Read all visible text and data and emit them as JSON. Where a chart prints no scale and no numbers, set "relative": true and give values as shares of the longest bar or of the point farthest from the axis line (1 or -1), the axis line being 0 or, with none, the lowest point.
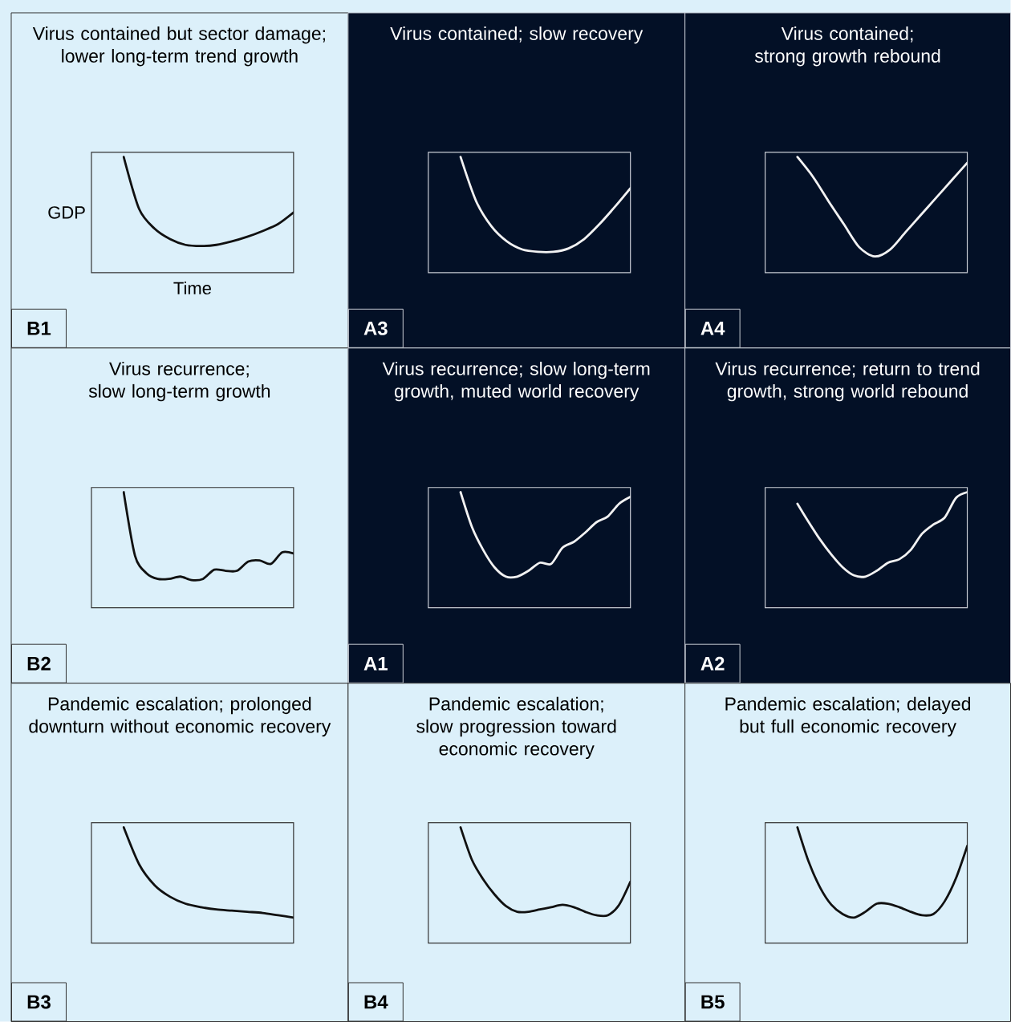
{
  "chart_data": [
    {
      "type": "line",
      "relative": true,
      "title": "Virus contained but sector damage; lower long-term trend growth",
      "xlabel": "Time",
      "ylabel": "GDP",
      "annotations": [
        "B1"
      ],
      "categories": [
        null,
        null,
        null,
        null,
        null,
        null,
        null,
        null,
        null,
        null,
        null,
        null
      ],
      "series": [
        {
          "color": "#111111",
          "values": [
            1.0,
            0.55,
            0.38,
            0.29,
            0.24,
            0.23,
            0.24,
            0.27,
            0.31,
            0.36,
            0.42,
            0.52
          ]
        }
      ]
    },
    {
      "type": "line",
      "relative": true,
      "title": "Virus contained; slow recovery",
      "annotations": [
        "A3"
      ],
      "categories": [
        null,
        null,
        null,
        null,
        null,
        null,
        null,
        null,
        null,
        null,
        null,
        null
      ],
      "series": [
        {
          "color": "#f2f2f2",
          "values": [
            1.0,
            0.62,
            0.4,
            0.27,
            0.2,
            0.18,
            0.18,
            0.21,
            0.29,
            0.42,
            0.57,
            0.73
          ]
        }
      ]
    },
    {
      "type": "line",
      "relative": true,
      "title": "Virus contained; strong growth rebound",
      "annotations": [
        "A4"
      ],
      "categories": [
        null,
        null,
        null,
        null,
        null,
        null,
        null,
        null,
        null,
        null,
        null,
        null
      ],
      "series": [
        {
          "color": "#f2f2f2",
          "values": [
            1.0,
            0.83,
            0.62,
            0.42,
            0.22,
            0.14,
            0.2,
            0.35,
            0.5,
            0.65,
            0.8,
            0.95
          ]
        }
      ]
    },
    {
      "type": "line",
      "relative": true,
      "title": "Virus recurrence; slow long-term growth",
      "annotations": [
        "B2"
      ],
      "categories": [
        null,
        null,
        null,
        null,
        null,
        null,
        null,
        null,
        null,
        null,
        null,
        null,
        null,
        null,
        null,
        null
      ],
      "series": [
        {
          "color": "#111111",
          "values": [
            1.0,
            0.45,
            0.3,
            0.25,
            0.25,
            0.27,
            0.24,
            0.25,
            0.33,
            0.32,
            0.32,
            0.4,
            0.41,
            0.38,
            0.48,
            0.47
          ]
        }
      ]
    },
    {
      "type": "line",
      "relative": true,
      "title": "Virus recurrence; slow long-term growth, muted world recovery",
      "annotations": [
        "A1"
      ],
      "categories": [
        null,
        null,
        null,
        null,
        null,
        null,
        null,
        null,
        null,
        null,
        null,
        null,
        null,
        null,
        null,
        null
      ],
      "series": [
        {
          "color": "#f2f2f2",
          "values": [
            1.0,
            0.7,
            0.5,
            0.35,
            0.27,
            0.27,
            0.32,
            0.39,
            0.38,
            0.52,
            0.57,
            0.65,
            0.74,
            0.79,
            0.9,
            0.96
          ]
        }
      ]
    },
    {
      "type": "line",
      "relative": true,
      "title": "Virus recurrence; return to trend growth, strong world rebound",
      "annotations": [
        "A2"
      ],
      "categories": [
        null,
        null,
        null,
        null,
        null,
        null,
        null,
        null,
        null,
        null,
        null,
        null,
        null,
        null,
        null,
        null
      ],
      "series": [
        {
          "color": "#f2f2f2",
          "values": [
            0.9,
            0.74,
            0.59,
            0.46,
            0.35,
            0.28,
            0.27,
            0.32,
            0.39,
            0.42,
            0.5,
            0.64,
            0.72,
            0.78,
            0.95,
            1.0
          ]
        }
      ]
    },
    {
      "type": "line",
      "relative": true,
      "title": "Pandemic escalation; prolonged downturn without economic recovery",
      "annotations": [
        "B3"
      ],
      "categories": [
        null,
        null,
        null,
        null,
        null,
        null,
        null,
        null,
        null,
        null,
        null,
        null
      ],
      "series": [
        {
          "color": "#111111",
          "values": [
            1.0,
            0.68,
            0.5,
            0.4,
            0.34,
            0.31,
            0.29,
            0.28,
            0.27,
            0.26,
            0.24,
            0.22
          ]
        }
      ]
    },
    {
      "type": "line",
      "relative": true,
      "title": "Pandemic escalation; slow progression toward economic recovery",
      "annotations": [
        "B4"
      ],
      "categories": [
        null,
        null,
        null,
        null,
        null,
        null,
        null,
        null,
        null,
        null,
        null,
        null,
        null,
        null,
        null,
        null
      ],
      "series": [
        {
          "color": "#111111",
          "values": [
            1.0,
            0.72,
            0.55,
            0.42,
            0.32,
            0.27,
            0.27,
            0.29,
            0.31,
            0.33,
            0.31,
            0.27,
            0.24,
            0.24,
            0.33,
            0.53
          ]
        }
      ]
    },
    {
      "type": "line",
      "relative": true,
      "title": "Pandemic escalation; delayed but full economic recovery",
      "annotations": [
        "B5"
      ],
      "categories": [
        null,
        null,
        null,
        null,
        null,
        null,
        null,
        null,
        null,
        null,
        null,
        null,
        null,
        null,
        null,
        null
      ],
      "series": [
        {
          "color": "#111111",
          "values": [
            1.0,
            0.7,
            0.48,
            0.33,
            0.25,
            0.22,
            0.27,
            0.34,
            0.34,
            0.31,
            0.27,
            0.24,
            0.25,
            0.36,
            0.56,
            0.84
          ]
        }
      ]
    }
  ]
}
